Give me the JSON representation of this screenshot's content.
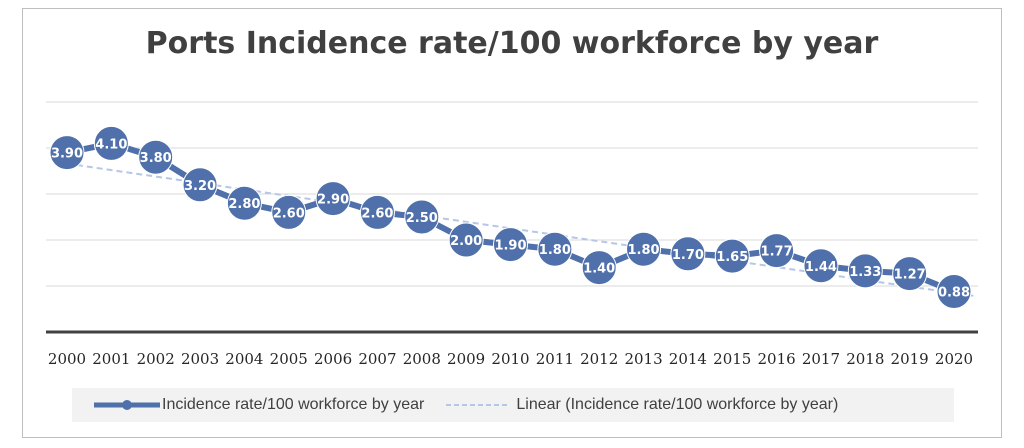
{
  "chart_data": {
    "type": "line",
    "title": "Ports Incidence rate/100 workforce by year",
    "xlabel": "",
    "ylabel": "",
    "categories": [
      "2000",
      "2001",
      "2002",
      "2003",
      "2004",
      "2005",
      "2006",
      "2007",
      "2008",
      "2009",
      "2010",
      "2011",
      "2012",
      "2013",
      "2014",
      "2015",
      "2016",
      "2017",
      "2018",
      "2019",
      "2020"
    ],
    "series": [
      {
        "name": "Incidence rate/100 workforce by year",
        "values": [
          3.9,
          4.1,
          3.8,
          3.2,
          2.8,
          2.6,
          2.9,
          2.6,
          2.5,
          2.0,
          1.9,
          1.8,
          1.4,
          1.8,
          1.7,
          1.65,
          1.77,
          1.44,
          1.33,
          1.27,
          0.88
        ],
        "labels": [
          "3.90",
          "4.10",
          "3.80",
          "3.20",
          "2.80",
          "2.60",
          "2.90",
          "2.60",
          "2.50",
          "2.00",
          "1.90",
          "1.80",
          "1.40",
          "1.80",
          "1.70",
          "1.65",
          "1.77",
          "1.44",
          "1.33",
          "1.27",
          "0.88"
        ],
        "color": "#4f70aa"
      }
    ],
    "trendline": {
      "name": "Linear (Incidence rate/100 workforce by year)",
      "type": "linear",
      "color": "#b4c7e7"
    },
    "ylim": [
      0,
      5
    ],
    "gridlines": true,
    "y_tick_labels_visible": false,
    "legend_position": "bottom"
  }
}
